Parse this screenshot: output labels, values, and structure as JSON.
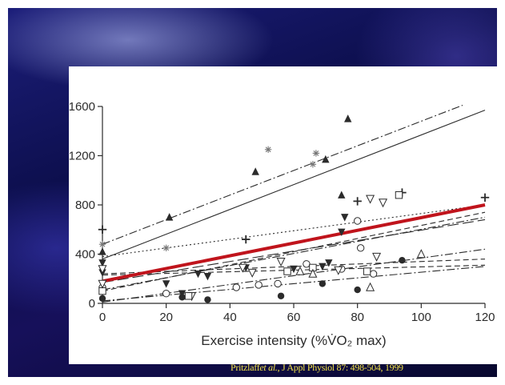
{
  "citation": {
    "author": "Pritzlaff",
    "etal": "et al.",
    "rest": ", J Appl Physiol 87: 498-504, 1999"
  },
  "chart_data": {
    "type": "scatter",
    "title": "",
    "xlabel": "Exercise intensity (%V̇O₂ max)",
    "ylabel": "",
    "xlim": [
      0,
      120
    ],
    "ylim": [
      0,
      1600
    ],
    "xticks": [
      "0",
      "20",
      "40",
      "60",
      "80",
      "100",
      "120"
    ],
    "yticks": [
      "0",
      "400",
      "800",
      "1200",
      "1600"
    ],
    "grid": false,
    "legend": "none",
    "colors": {
      "mean_line": "#c0141c",
      "ink": "#2b2b2b",
      "citation": "#f1e24a"
    },
    "series": [
      {
        "marker": "triangle-filled",
        "line": "dashdot",
        "points": [
          [
            0,
            420
          ],
          [
            21,
            700
          ],
          [
            48,
            1070
          ],
          [
            70,
            1170
          ],
          [
            75,
            880
          ],
          [
            77,
            1500
          ]
        ],
        "fit": [
          [
            0,
            480
          ],
          [
            113,
            1610
          ]
        ]
      },
      {
        "marker": "plus",
        "line": "solid",
        "points": [
          [
            0,
            600
          ],
          [
            45,
            520
          ],
          [
            80,
            830
          ],
          [
            120,
            860
          ],
          [
            94,
            900
          ]
        ],
        "fit": [
          [
            0,
            360
          ],
          [
            120,
            1570
          ]
        ]
      },
      {
        "marker": "asterisk",
        "line": "dotted",
        "points": [
          [
            0,
            480
          ],
          [
            20,
            450
          ],
          [
            52,
            1250
          ],
          [
            67,
            1220
          ],
          [
            66,
            1130
          ]
        ],
        "fit": [
          [
            0,
            380
          ],
          [
            120,
            800
          ]
        ]
      },
      {
        "marker": "circle-open",
        "line": "dashdot",
        "points": [
          [
            0,
            130
          ],
          [
            20,
            80
          ],
          [
            42,
            130
          ],
          [
            49,
            150
          ],
          [
            55,
            160
          ],
          [
            64,
            320
          ],
          [
            75,
            280
          ],
          [
            80,
            670
          ],
          [
            81,
            450
          ],
          [
            85,
            240
          ]
        ],
        "fit": [
          [
            0,
            10
          ],
          [
            120,
            440
          ]
        ]
      },
      {
        "marker": "triangle-down-filled",
        "line": "dashed-long",
        "points": [
          [
            0,
            330
          ],
          [
            0,
            250
          ],
          [
            20,
            160
          ],
          [
            25,
            80
          ],
          [
            30,
            240
          ],
          [
            33,
            220
          ],
          [
            45,
            290
          ],
          [
            60,
            280
          ],
          [
            69,
            300
          ],
          [
            71,
            330
          ],
          [
            75,
            580
          ],
          [
            76,
            700
          ]
        ],
        "fit": [
          [
            0,
            170
          ],
          [
            120,
            680
          ]
        ]
      },
      {
        "marker": "triangle-down-open",
        "line": "dashed",
        "points": [
          [
            0,
            280
          ],
          [
            28,
            60
          ],
          [
            44,
            290
          ],
          [
            56,
            340
          ],
          [
            74,
            270
          ],
          [
            84,
            850
          ],
          [
            88,
            820
          ]
        ],
        "fit": [
          [
            0,
            240
          ],
          [
            120,
            360
          ]
        ]
      },
      {
        "marker": "square-open",
        "line": "dashed",
        "points": [
          [
            0,
            100
          ],
          [
            27,
            60
          ],
          [
            58,
            260
          ],
          [
            66,
            290
          ],
          [
            83,
            260
          ],
          [
            93,
            880
          ]
        ],
        "fit": [
          [
            0,
            230
          ],
          [
            120,
            310
          ]
        ]
      },
      {
        "marker": "circle-filled",
        "line": "dashdot",
        "points": [
          [
            0,
            40
          ],
          [
            25,
            50
          ],
          [
            33,
            30
          ],
          [
            56,
            60
          ],
          [
            69,
            160
          ],
          [
            80,
            110
          ],
          [
            94,
            350
          ]
        ],
        "fit": [
          [
            0,
            20
          ],
          [
            120,
            300
          ]
        ]
      },
      {
        "marker": "triangle-open",
        "line": "dashed",
        "points": [
          [
            62,
            260
          ],
          [
            66,
            240
          ],
          [
            84,
            130
          ],
          [
            100,
            400
          ]
        ],
        "fit": [
          [
            0,
            100
          ],
          [
            120,
            740
          ]
        ]
      },
      {
        "marker": "triangle-down-open",
        "line": "dashdot",
        "points": [
          [
            0,
            160
          ],
          [
            47,
            250
          ],
          [
            86,
            380
          ]
        ],
        "fit": [
          [
            0,
            110
          ],
          [
            120,
            700
          ]
        ]
      },
      {
        "name": "",
        "marker": "none",
        "line": "solid-thick-red",
        "points": [],
        "fit": [
          [
            0,
            180
          ],
          [
            120,
            800
          ]
        ]
      }
    ]
  }
}
